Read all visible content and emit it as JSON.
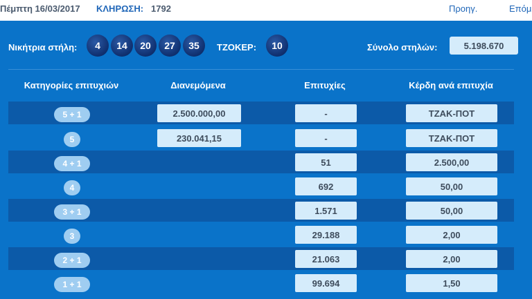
{
  "topbar": {
    "date": "Πέμπτη 16/03/2017",
    "draw_label": "ΚΛΗΡΩΣΗ:",
    "draw_number": "1792",
    "prev_label": "Προηγ.",
    "next_label": "Επόμ."
  },
  "winning": {
    "label": "Νικήτρια στήλη:",
    "numbers": [
      "4",
      "14",
      "20",
      "27",
      "35"
    ],
    "joker_label": "ΤΖΟΚΕΡ:",
    "joker": "10",
    "total_label": "Σύνολο στηλών:",
    "total_value": "5.198.670"
  },
  "table": {
    "headers": {
      "category": "Κατηγορίες επιτυχιών",
      "distributed": "Διανεμόμενα",
      "winners": "Επιτυχίες",
      "prize": "Κέρδη ανά επιτυχία"
    },
    "rows": [
      {
        "category": "5 + 1",
        "distributed": "2.500.000,00",
        "winners": "-",
        "prize": "ΤΖΑΚ-ΠΟΤ"
      },
      {
        "category": "5",
        "distributed": "230.041,15",
        "winners": "-",
        "prize": "ΤΖΑΚ-ΠΟΤ"
      },
      {
        "category": "4 + 1",
        "distributed": "",
        "winners": "51",
        "prize": "2.500,00"
      },
      {
        "category": "4",
        "distributed": "",
        "winners": "692",
        "prize": "50,00"
      },
      {
        "category": "3 + 1",
        "distributed": "",
        "winners": "1.571",
        "prize": "50,00"
      },
      {
        "category": "3",
        "distributed": "",
        "winners": "29.188",
        "prize": "2,00"
      },
      {
        "category": "2 + 1",
        "distributed": "",
        "winners": "21.063",
        "prize": "2,00"
      },
      {
        "category": "1 + 1",
        "distributed": "",
        "winners": "99.694",
        "prize": "1,50"
      }
    ]
  }
}
